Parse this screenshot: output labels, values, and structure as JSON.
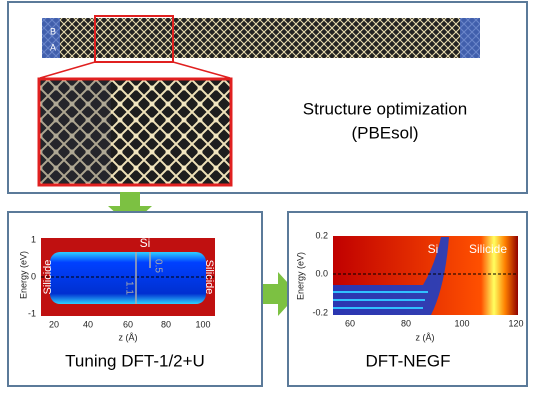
{
  "structure": {
    "labels": [
      "B",
      "A"
    ],
    "title": "Structure optimization",
    "method": "(PBEsol)"
  },
  "left_panel": {
    "ylabel": "Energy (eV)",
    "yticks": [
      "1",
      "0",
      "-1"
    ],
    "xticks": [
      "20",
      "40",
      "60",
      "80",
      "100"
    ],
    "xlabel": "z (Å)",
    "region_center": "Si",
    "region_left": "Silicide",
    "region_right": "Silicide",
    "gap_large": "1.1",
    "gap_small": "0.5",
    "caption": "Tuning DFT-1/2+U"
  },
  "right_panel": {
    "ylabel": "Energy (eV)",
    "yticks": [
      "0.2",
      "0.0",
      "-0.2"
    ],
    "xticks": [
      "60",
      "80",
      "100",
      "120"
    ],
    "xlabel": "z (Å)",
    "region_left": "Si",
    "region_right": "Silicide",
    "caption": "DFT-NEGF"
  }
}
